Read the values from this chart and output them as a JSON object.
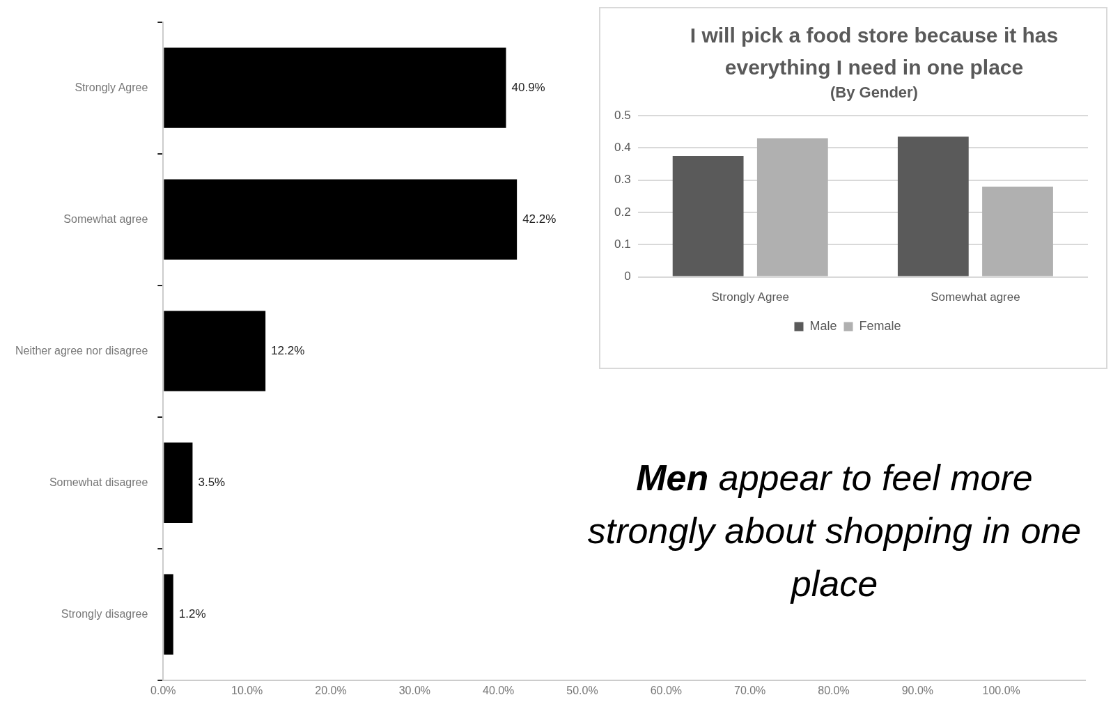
{
  "chart_data": [
    {
      "type": "bar",
      "orientation": "horizontal",
      "categories": [
        "Strongly Agree",
        "Somewhat agree",
        "Neither agree nor disagree",
        "Somewhat disagree",
        "Strongly disagree"
      ],
      "values": [
        40.9,
        42.2,
        12.2,
        3.5,
        1.2
      ],
      "color": "#000000",
      "value_labels": [
        "40.9%",
        "42.2%",
        "12.2%",
        "3.5%",
        "1.2%"
      ],
      "xlim": [
        0,
        110
      ],
      "xticks": [
        {
          "value": 0,
          "label": "0.0%"
        },
        {
          "value": 10,
          "label": "10.0%"
        },
        {
          "value": 20,
          "label": "20.0%"
        },
        {
          "value": 30,
          "label": "30.0%"
        },
        {
          "value": 40,
          "label": "40.0%"
        },
        {
          "value": 50,
          "label": "50.0%"
        },
        {
          "value": 60,
          "label": "60.0%"
        },
        {
          "value": 70,
          "label": "70.0%"
        },
        {
          "value": 80,
          "label": "80.0%"
        },
        {
          "value": 90,
          "label": "90.0%"
        },
        {
          "value": 100,
          "label": "100.0%"
        }
      ],
      "grid": false,
      "legend": false,
      "annotations": [
        "Men appear to feel more strongly about shopping in one place"
      ]
    },
    {
      "type": "bar",
      "title": "I will pick a food store because it has everything I need in one place",
      "subtitle": "(By Gender)",
      "categories": [
        "Strongly Agree",
        "Somewhat agree"
      ],
      "series": [
        {
          "name": "Male",
          "color": "#5a5a5a",
          "values": [
            0.375,
            0.435
          ]
        },
        {
          "name": "Female",
          "color": "#b0b0b0",
          "values": [
            0.43,
            0.28
          ]
        }
      ],
      "ylim": [
        0,
        0.5
      ],
      "yticks": [
        0,
        0.1,
        0.2,
        0.3,
        0.4,
        0.5
      ],
      "grid": "y",
      "legend": "bottom"
    }
  ]
}
